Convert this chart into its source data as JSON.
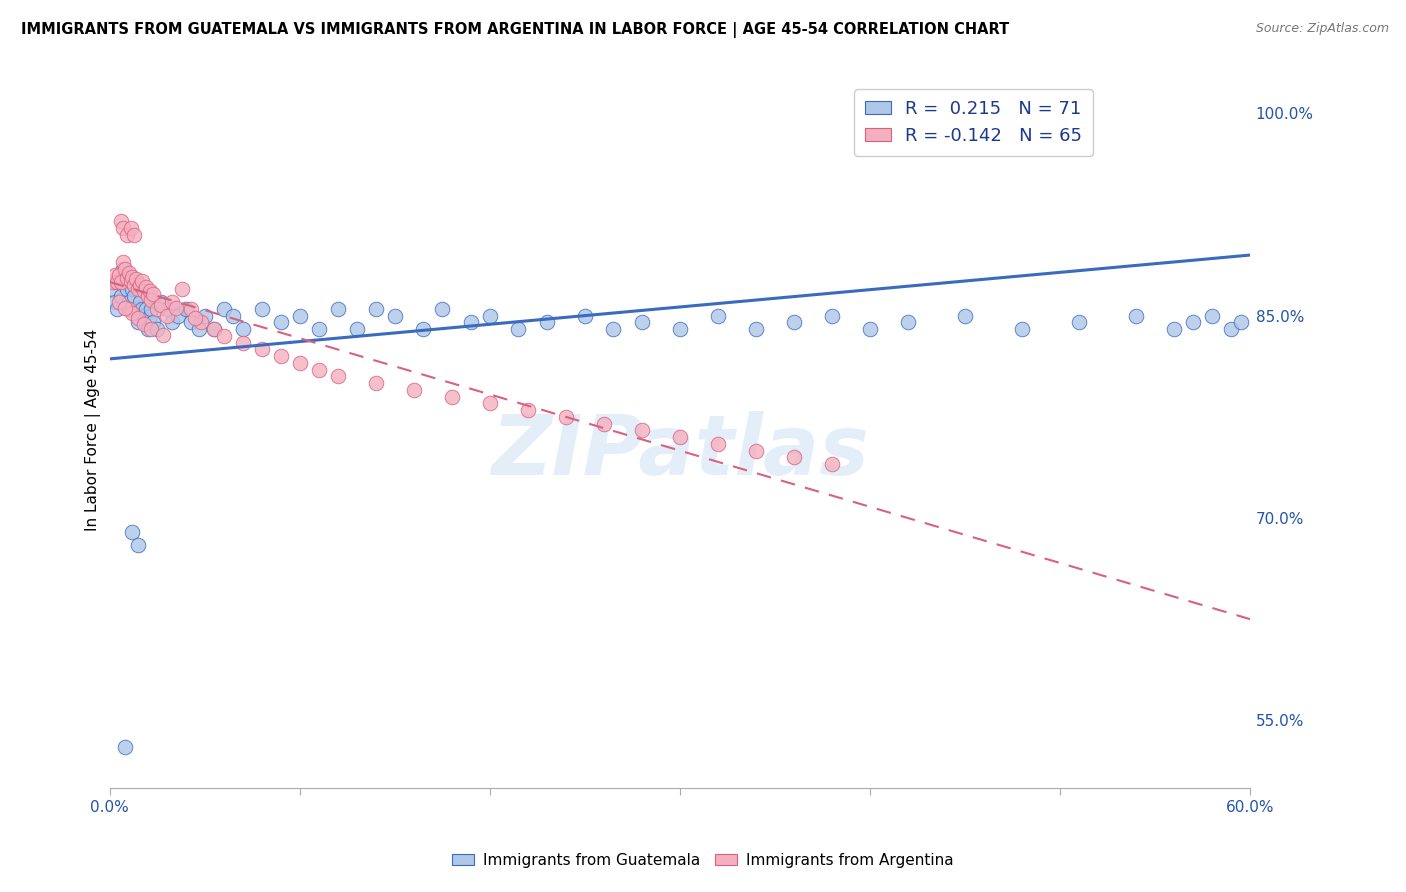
{
  "title": "IMMIGRANTS FROM GUATEMALA VS IMMIGRANTS FROM ARGENTINA IN LABOR FORCE | AGE 45-54 CORRELATION CHART",
  "source": "Source: ZipAtlas.com",
  "ylabel": "In Labor Force | Age 45-54",
  "xlim": [
    0.0,
    0.6
  ],
  "ylim": [
    0.5,
    1.03
  ],
  "xticks": [
    0.0,
    0.1,
    0.2,
    0.3,
    0.4,
    0.5,
    0.6
  ],
  "xtick_labels": [
    "0.0%",
    "",
    "",
    "",
    "",
    "",
    "60.0%"
  ],
  "right_yticks": [
    0.55,
    0.7,
    0.85,
    1.0
  ],
  "right_ytick_labels": [
    "55.0%",
    "70.0%",
    "85.0%",
    "100.0%"
  ],
  "guatemala_color": "#aec6e8",
  "argentina_color": "#f4b0c0",
  "guatemala_line_color": "#3a6bbf",
  "argentina_line_color": "#d96080",
  "R_guatemala": 0.215,
  "N_guatemala": 71,
  "R_argentina": -0.142,
  "N_argentina": 65,
  "watermark": "ZIPatlas",
  "guatemala_line_x0": 0.0,
  "guatemala_line_y0": 0.818,
  "guatemala_line_x1": 0.6,
  "guatemala_line_y1": 0.895,
  "argentina_line_x0": 0.0,
  "argentina_line_y0": 0.875,
  "argentina_line_x1": 0.6,
  "argentina_line_y1": 0.625,
  "guatemala_x": [
    0.002,
    0.003,
    0.004,
    0.005,
    0.006,
    0.007,
    0.008,
    0.009,
    0.01,
    0.011,
    0.012,
    0.013,
    0.014,
    0.015,
    0.016,
    0.017,
    0.018,
    0.019,
    0.02,
    0.021,
    0.022,
    0.023,
    0.025,
    0.027,
    0.03,
    0.033,
    0.036,
    0.04,
    0.043,
    0.047,
    0.05,
    0.055,
    0.06,
    0.065,
    0.07,
    0.08,
    0.09,
    0.1,
    0.11,
    0.12,
    0.13,
    0.14,
    0.15,
    0.165,
    0.175,
    0.19,
    0.2,
    0.215,
    0.23,
    0.25,
    0.265,
    0.28,
    0.3,
    0.32,
    0.34,
    0.36,
    0.38,
    0.4,
    0.42,
    0.45,
    0.48,
    0.51,
    0.54,
    0.56,
    0.57,
    0.58,
    0.59,
    0.595,
    0.008,
    0.012,
    0.015
  ],
  "guatemala_y": [
    0.87,
    0.86,
    0.855,
    0.875,
    0.865,
    0.885,
    0.88,
    0.87,
    0.86,
    0.875,
    0.87,
    0.865,
    0.855,
    0.845,
    0.86,
    0.855,
    0.85,
    0.855,
    0.84,
    0.85,
    0.855,
    0.845,
    0.84,
    0.86,
    0.855,
    0.845,
    0.85,
    0.855,
    0.845,
    0.84,
    0.85,
    0.84,
    0.855,
    0.85,
    0.84,
    0.855,
    0.845,
    0.85,
    0.84,
    0.855,
    0.84,
    0.855,
    0.85,
    0.84,
    0.855,
    0.845,
    0.85,
    0.84,
    0.845,
    0.85,
    0.84,
    0.845,
    0.84,
    0.85,
    0.84,
    0.845,
    0.85,
    0.84,
    0.845,
    0.85,
    0.84,
    0.845,
    0.85,
    0.84,
    0.845,
    0.85,
    0.84,
    0.845,
    0.53,
    0.69,
    0.68
  ],
  "argentina_x": [
    0.002,
    0.003,
    0.004,
    0.005,
    0.006,
    0.007,
    0.008,
    0.009,
    0.01,
    0.011,
    0.012,
    0.013,
    0.014,
    0.015,
    0.016,
    0.017,
    0.018,
    0.019,
    0.02,
    0.021,
    0.022,
    0.023,
    0.025,
    0.027,
    0.03,
    0.033,
    0.038,
    0.043,
    0.048,
    0.055,
    0.06,
    0.07,
    0.08,
    0.09,
    0.1,
    0.11,
    0.12,
    0.14,
    0.16,
    0.18,
    0.2,
    0.22,
    0.24,
    0.26,
    0.28,
    0.3,
    0.32,
    0.34,
    0.36,
    0.38,
    0.01,
    0.012,
    0.015,
    0.018,
    0.022,
    0.028,
    0.035,
    0.045,
    0.005,
    0.008,
    0.006,
    0.007,
    0.009,
    0.011,
    0.013
  ],
  "argentina_y": [
    0.875,
    0.88,
    0.875,
    0.88,
    0.875,
    0.89,
    0.885,
    0.878,
    0.882,
    0.876,
    0.879,
    0.873,
    0.877,
    0.87,
    0.873,
    0.876,
    0.868,
    0.871,
    0.865,
    0.868,
    0.862,
    0.866,
    0.855,
    0.858,
    0.85,
    0.86,
    0.87,
    0.855,
    0.845,
    0.84,
    0.835,
    0.83,
    0.825,
    0.82,
    0.815,
    0.81,
    0.805,
    0.8,
    0.795,
    0.79,
    0.785,
    0.78,
    0.775,
    0.77,
    0.765,
    0.76,
    0.755,
    0.75,
    0.745,
    0.74,
    0.855,
    0.852,
    0.848,
    0.844,
    0.84,
    0.836,
    0.856,
    0.848,
    0.86,
    0.856,
    0.92,
    0.915,
    0.91,
    0.915,
    0.91
  ]
}
